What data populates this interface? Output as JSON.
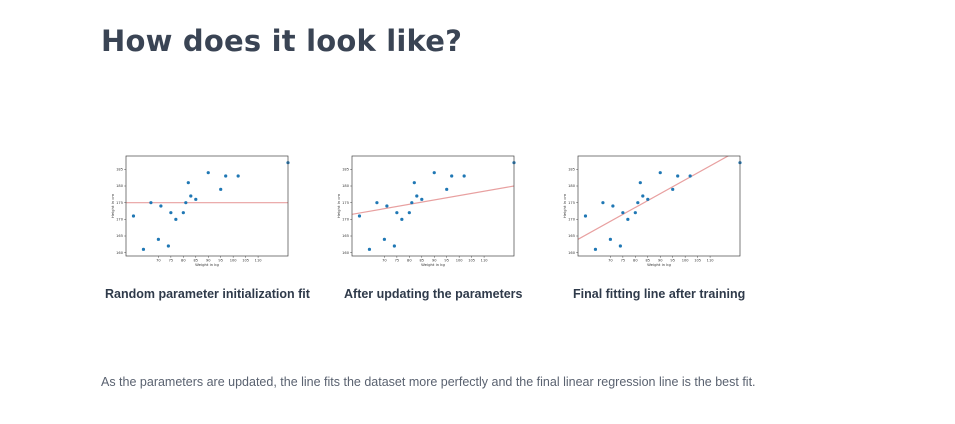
{
  "page": {
    "title": "How does it look like?",
    "description": "As the parameters are updated, the line fits the dataset more perfectly and the final linear regression line is the best fit."
  },
  "colors": {
    "points": "#1f77b4",
    "line": "#e8a0a0",
    "text": "#2f3a4a"
  },
  "chart_data": [
    {
      "type": "scatter",
      "caption": "Random parameter initialization fit",
      "xlabel": "Weight in kg",
      "ylabel": "Height in cm",
      "xlim": [
        57,
        122
      ],
      "ylim": [
        159,
        189
      ],
      "xticks": [
        70,
        75,
        80,
        85,
        90,
        95,
        100,
        105,
        110
      ],
      "yticks": [
        160,
        165,
        170,
        175,
        180,
        185
      ],
      "points": {
        "x": [
          60,
          64,
          67,
          70,
          71,
          74,
          75,
          77,
          80,
          81,
          82,
          83,
          85,
          90,
          95,
          97,
          102,
          122
        ],
        "y": [
          171,
          161,
          175,
          164,
          174,
          162,
          172,
          170,
          172,
          175,
          181,
          177,
          176,
          184,
          179,
          183,
          183,
          187
        ]
      },
      "fit_line": {
        "x": [
          57,
          122
        ],
        "y": [
          175,
          175
        ]
      }
    },
    {
      "type": "scatter",
      "caption": "After updating the parameters",
      "xlabel": "Weight in kg",
      "ylabel": "Height in cm",
      "xlim": [
        57,
        122
      ],
      "ylim": [
        159,
        189
      ],
      "xticks": [
        70,
        75,
        80,
        85,
        90,
        95,
        100,
        105,
        110
      ],
      "yticks": [
        160,
        165,
        170,
        175,
        180,
        185
      ],
      "points": {
        "x": [
          60,
          64,
          67,
          70,
          71,
          74,
          75,
          77,
          80,
          81,
          82,
          83,
          85,
          90,
          95,
          97,
          102,
          122
        ],
        "y": [
          171,
          161,
          175,
          164,
          174,
          162,
          172,
          170,
          172,
          175,
          181,
          177,
          176,
          184,
          179,
          183,
          183,
          187
        ]
      },
      "fit_line": {
        "x": [
          57,
          122
        ],
        "y": [
          171.5,
          180
        ]
      }
    },
    {
      "type": "scatter",
      "caption": "Final fitting line after training",
      "xlabel": "Weight in kg",
      "ylabel": "Height in cm",
      "xlim": [
        57,
        122
      ],
      "ylim": [
        159,
        189
      ],
      "xticks": [
        70,
        75,
        80,
        85,
        90,
        95,
        100,
        105,
        110
      ],
      "yticks": [
        160,
        165,
        170,
        175,
        180,
        185
      ],
      "points": {
        "x": [
          60,
          64,
          67,
          70,
          71,
          74,
          75,
          77,
          80,
          81,
          82,
          83,
          85,
          90,
          95,
          97,
          102,
          122
        ],
        "y": [
          171,
          161,
          175,
          164,
          174,
          162,
          172,
          170,
          172,
          175,
          181,
          177,
          176,
          184,
          179,
          183,
          183,
          187
        ]
      },
      "fit_line": {
        "x": [
          57,
          122
        ],
        "y": [
          164,
          191
        ]
      }
    }
  ]
}
